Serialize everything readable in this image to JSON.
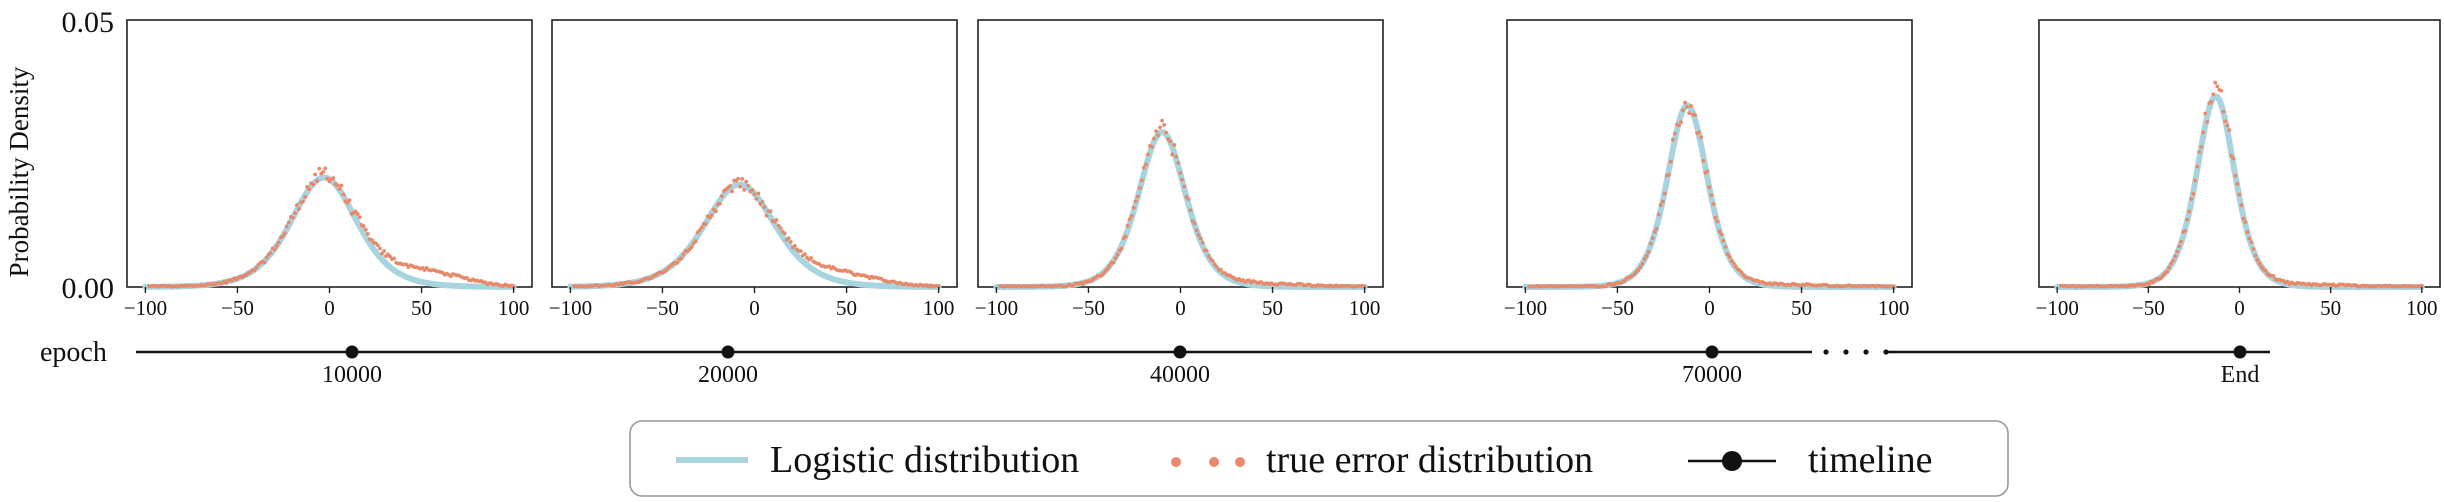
{
  "figure": {
    "ylabel": "Probability Density",
    "yticks": [
      "0.05",
      "0.00"
    ],
    "timeline_title": "epoch"
  },
  "legend": {
    "logistic": "Logistic distribution",
    "true_error": "true error distribution",
    "timeline": "timeline"
  },
  "colors": {
    "logistic": "#a8d4e0",
    "true_error": "#e8896a",
    "axis": "#222222"
  },
  "chart_data": [
    {
      "type": "line",
      "epoch_label": "10000",
      "xlim": [
        -110,
        110
      ],
      "ylim": [
        0,
        0.05
      ],
      "xticks": [
        -100,
        -50,
        0,
        50,
        100
      ],
      "ytick_values": [
        0,
        0.05
      ],
      "series": [
        {
          "name": "Logistic distribution",
          "kind": "line",
          "mu": -3,
          "s": 12,
          "peak": 0.0205
        },
        {
          "name": "true error distribution",
          "kind": "scatter",
          "mu": -3,
          "s": 12,
          "peak": 0.021,
          "max_value": 0.0225,
          "tail_bump": 0.0025
        }
      ]
    },
    {
      "type": "line",
      "epoch_label": "20000",
      "xlim": [
        -110,
        110
      ],
      "ylim": [
        0,
        0.05
      ],
      "xticks": [
        -100,
        -50,
        0,
        50,
        100
      ],
      "ytick_values": [
        0,
        0.05
      ],
      "series": [
        {
          "name": "Logistic distribution",
          "kind": "line",
          "mu": -8,
          "s": 13,
          "peak": 0.0192
        },
        {
          "name": "true error distribution",
          "kind": "scatter",
          "mu": -8,
          "s": 13,
          "peak": 0.0192,
          "max_value": 0.02,
          "tail_bump": 0.002
        }
      ]
    },
    {
      "type": "line",
      "epoch_label": "40000",
      "xlim": [
        -110,
        110
      ],
      "ylim": [
        0,
        0.05
      ],
      "xticks": [
        -100,
        -50,
        0,
        50,
        100
      ],
      "ytick_values": [
        0,
        0.05
      ],
      "series": [
        {
          "name": "Logistic distribution",
          "kind": "line",
          "mu": -10,
          "s": 8.6,
          "peak": 0.029
        },
        {
          "name": "true error distribution",
          "kind": "scatter",
          "mu": -10,
          "s": 8.6,
          "peak": 0.0292,
          "max_value": 0.0295,
          "tail_bump": 0.0006
        }
      ]
    },
    {
      "type": "line",
      "epoch_label": "70000",
      "xlim": [
        -110,
        110
      ],
      "ylim": [
        0,
        0.05
      ],
      "xticks": [
        -100,
        -50,
        0,
        50,
        100
      ],
      "ytick_values": [
        0,
        0.05
      ],
      "series": [
        {
          "name": "Logistic distribution",
          "kind": "line",
          "mu": -12,
          "s": 7.3,
          "peak": 0.034
        },
        {
          "name": "true error distribution",
          "kind": "scatter",
          "mu": -12,
          "s": 7.3,
          "peak": 0.0342,
          "max_value": 0.0345,
          "tail_bump": 0.0004
        }
      ]
    },
    {
      "type": "line",
      "epoch_label": "End",
      "xlim": [
        -110,
        110
      ],
      "ylim": [
        0,
        0.05
      ],
      "xticks": [
        -100,
        -50,
        0,
        50,
        100
      ],
      "ytick_values": [
        0,
        0.05
      ],
      "series": [
        {
          "name": "Logistic distribution",
          "kind": "line",
          "mu": -13,
          "s": 7.0,
          "peak": 0.0357
        },
        {
          "name": "true error distribution",
          "kind": "scatter",
          "mu": -13,
          "s": 7.0,
          "peak": 0.0365,
          "max_value": 0.0378,
          "tail_bump": 0.0004
        }
      ]
    }
  ]
}
